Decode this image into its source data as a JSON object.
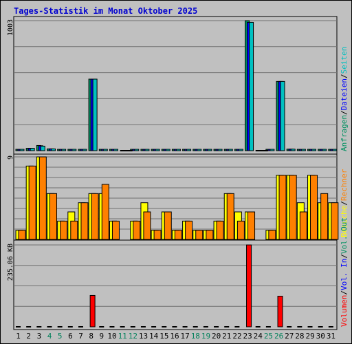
{
  "chart_data": {
    "type": "bar",
    "title": "Tages-Statistik im Monat Oktober 2025",
    "colors": {
      "frame_bg": "#c0c0c0",
      "plot_bg": "#c0c0c0",
      "title": "#0000d0",
      "hits": "#009060",
      "files": "#0000ff",
      "pages": "#00c0c0",
      "visits": "#ffff00",
      "sites": "#ff8000",
      "kbytes": "#ff0000",
      "weekend_tick": "#00805a",
      "text": "#000000"
    },
    "categories": [
      "1",
      "2",
      "3",
      "4",
      "5",
      "6",
      "7",
      "8",
      "9",
      "10",
      "11",
      "12",
      "13",
      "14",
      "15",
      "16",
      "17",
      "18",
      "19",
      "20",
      "21",
      "22",
      "23",
      "24",
      "25",
      "26",
      "27",
      "28",
      "29",
      "30",
      "31"
    ],
    "weekend_days": [
      "4",
      "5",
      "11",
      "12",
      "18",
      "19",
      "25",
      "26"
    ],
    "panels": [
      {
        "name": "top",
        "ymax": 1003,
        "ymax_label": "1003",
        "legend": [
          {
            "text": "Anfragen",
            "color": "#009060"
          },
          {
            "text": "/",
            "color": "#000000"
          },
          {
            "text": "Dateien",
            "color": "#0000ff"
          },
          {
            "text": "/",
            "color": "#000000"
          },
          {
            "text": "Seiten",
            "color": "#00c0c0"
          }
        ],
        "series": [
          {
            "name": "Anfragen",
            "color": "#009060",
            "values": [
              9,
              18,
              40,
              14,
              4,
              4,
              4,
              552,
              10,
              5,
              0,
              4,
              4,
              4,
              4,
              4,
              4,
              4,
              4,
              4,
              4,
              4,
              1003,
              0,
              4,
              534,
              12,
              4,
              10,
              4,
              4
            ]
          },
          {
            "name": "Dateien",
            "color": "#0000ff",
            "values": [
              9,
              18,
              38,
              14,
              4,
              4,
              4,
              552,
              10,
              5,
              0,
              4,
              4,
              4,
              4,
              4,
              4,
              4,
              4,
              4,
              4,
              4,
              990,
              0,
              4,
              534,
              12,
              4,
              10,
              4,
              4
            ]
          },
          {
            "name": "Seiten",
            "color": "#00c0c0",
            "values": [
              9,
              18,
              35,
              14,
              4,
              4,
              4,
              552,
              10,
              5,
              0,
              4,
              4,
              4,
              4,
              4,
              4,
              4,
              4,
              4,
              4,
              4,
              990,
              0,
              4,
              534,
              12,
              4,
              10,
              4,
              4
            ]
          }
        ]
      },
      {
        "name": "middle",
        "ymax": 9,
        "ymax_label": "9",
        "legend": [
          {
            "text": "Besuche",
            "color": "#ffff00"
          },
          {
            "text": "/",
            "color": "#000000"
          },
          {
            "text": "Rechner",
            "color": "#ff8000"
          }
        ],
        "series": [
          {
            "name": "Besuche",
            "color": "#ffff00",
            "values": [
              1,
              8,
              9,
              5,
              2,
              3,
              4,
              5,
              5,
              2,
              0,
              2,
              4,
              1,
              3,
              1,
              2,
              1,
              1,
              2,
              5,
              3,
              3,
              0,
              1,
              7,
              7,
              4,
              7,
              4,
              4
            ]
          },
          {
            "name": "Rechner",
            "color": "#ff8000",
            "values": [
              1,
              8,
              9,
              5,
              2,
              2,
              4,
              5,
              6,
              2,
              0,
              2,
              3,
              1,
              3,
              1,
              2,
              1,
              1,
              2,
              5,
              2,
              3,
              0,
              1,
              7,
              7,
              3,
              7,
              5,
              4
            ]
          }
        ]
      },
      {
        "name": "bottom",
        "ymax": 235.06,
        "ymax_label": "235.06 KB",
        "legend": [
          {
            "text": "Volumen",
            "color": "#ff0000"
          },
          {
            "text": "/",
            "color": "#000000"
          },
          {
            "text": "Vol. In",
            "color": "#0000ff"
          },
          {
            "text": "/",
            "color": "#000000"
          },
          {
            "text": "Vol. Out",
            "color": "#009060"
          }
        ],
        "series": [
          {
            "name": "Volumen",
            "color": "#ff0000",
            "values": [
              0,
              0,
              0,
              0,
              0,
              0,
              0,
              90,
              0,
              0,
              0,
              0,
              0,
              0,
              0,
              0,
              0,
              0,
              0,
              0,
              0,
              0,
              235.06,
              0,
              0,
              88,
              0,
              0,
              0,
              0,
              0
            ]
          }
        ]
      }
    ]
  }
}
